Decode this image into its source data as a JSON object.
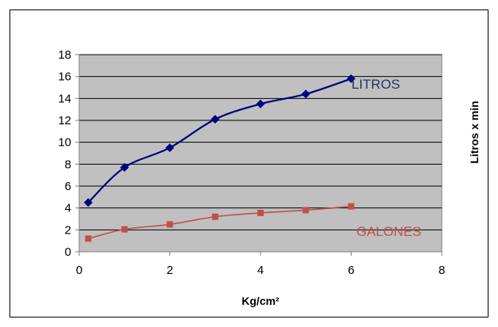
{
  "chart_data": {
    "type": "line",
    "title": "",
    "xlabel": "Kg/cm²",
    "ylabel": "Litros x min",
    "xlim": [
      0,
      8
    ],
    "ylim": [
      0,
      18
    ],
    "x_ticks": [
      "0",
      "2",
      "4",
      "6",
      "8"
    ],
    "y_ticks": [
      "0",
      "2",
      "4",
      "6",
      "8",
      "10",
      "12",
      "14",
      "16",
      "18"
    ],
    "grid": true,
    "plot_background": "#c0c0c0",
    "x": [
      0.2,
      1,
      2,
      3,
      4,
      5,
      6
    ],
    "series": [
      {
        "name": "LITROS",
        "color": "#000080",
        "label_color": "#1f3864",
        "marker": "diamond",
        "values": [
          4.5,
          7.7,
          9.5,
          12.1,
          13.5,
          14.4,
          15.8
        ]
      },
      {
        "name": "GALONES",
        "color": "#c0504d",
        "label_color": "#c0504d",
        "marker": "square",
        "values": [
          1.2,
          2.05,
          2.5,
          3.2,
          3.55,
          3.8,
          4.15
        ]
      }
    ]
  }
}
